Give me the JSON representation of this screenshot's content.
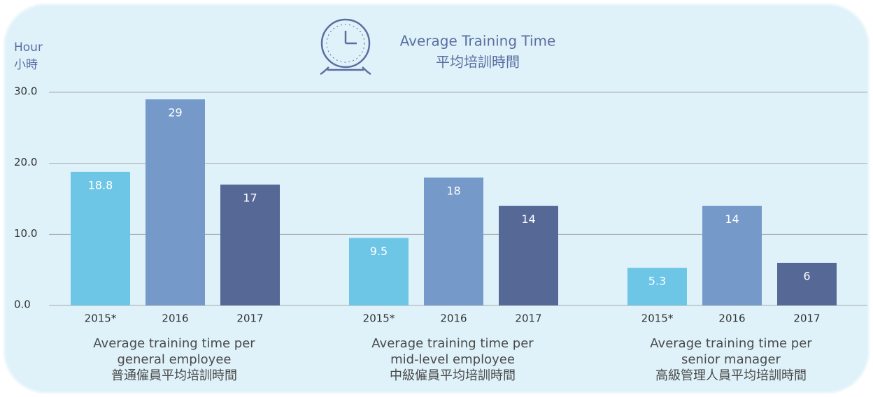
{
  "chart_data": {
    "type": "bar",
    "title": "Average Training Time",
    "subtitle": "平均培訓時間",
    "ylabel": [
      "Hour",
      "小時"
    ],
    "categories": [
      [
        "Average training time per",
        "general employee",
        "普通僱員平均培訓時間"
      ],
      [
        "Average training time per",
        "mid-level employee",
        "中級僱員平均培訓時間"
      ],
      [
        "Average training time per",
        "senior manager",
        "高級管理人員平均培訓時間"
      ]
    ],
    "series": [
      {
        "name": "2015*",
        "color": "#6ec6e6",
        "values": [
          18.8,
          9.5,
          5.3
        ]
      },
      {
        "name": "2016",
        "color": "#7599c9",
        "values": [
          29,
          18,
          14
        ]
      },
      {
        "name": "2017",
        "color": "#556896",
        "values": [
          17,
          14,
          6
        ]
      }
    ],
    "ylim": [
      0,
      30
    ],
    "yticks": [
      {
        "value": 0,
        "label": "0.0"
      },
      {
        "value": 10,
        "label": "10.0"
      },
      {
        "value": 20,
        "label": "20.0"
      },
      {
        "value": 30,
        "label": "30.0"
      }
    ],
    "grid": true
  }
}
